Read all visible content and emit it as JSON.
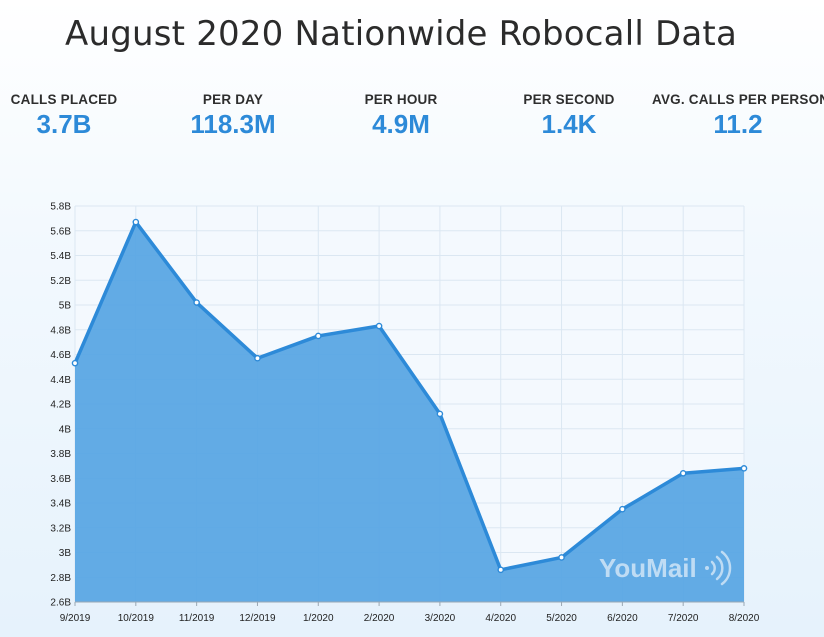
{
  "title": "August 2020 Nationwide Robocall Data",
  "stats": [
    {
      "label": "CALLS PLACED",
      "value": "3.7B"
    },
    {
      "label": "PER DAY",
      "value": "118.3M"
    },
    {
      "label": "PER HOUR",
      "value": "4.9M"
    },
    {
      "label": "PER SECOND",
      "value": "1.4K"
    },
    {
      "label": "AVG. CALLS PER PERSON",
      "value": "11.2"
    }
  ],
  "watermark": "YouMail",
  "colors": {
    "fill": "#5aa6e4",
    "line": "#2d8ad8",
    "accent": "#2d8ad8"
  },
  "chart_data": {
    "type": "area",
    "title": "",
    "xlabel": "",
    "ylabel": "",
    "categories": [
      "9/2019",
      "10/2019",
      "11/2019",
      "12/2019",
      "1/2020",
      "2/2020",
      "3/2020",
      "4/2020",
      "5/2020",
      "6/2020",
      "7/2020",
      "8/2020"
    ],
    "values": [
      4.53,
      5.67,
      5.02,
      4.57,
      4.75,
      4.83,
      4.12,
      2.86,
      2.96,
      3.35,
      3.64,
      3.68
    ],
    "unit": "B",
    "ylim": [
      2.6,
      5.8
    ],
    "y_ticks": [
      "2.6B",
      "2.8B",
      "3B",
      "3.2B",
      "3.4B",
      "3.6B",
      "3.8B",
      "4B",
      "4.2B",
      "4.4B",
      "4.6B",
      "4.8B",
      "5B",
      "5.2B",
      "5.4B",
      "5.6B",
      "5.8B"
    ],
    "grid": true,
    "legend": "none"
  }
}
